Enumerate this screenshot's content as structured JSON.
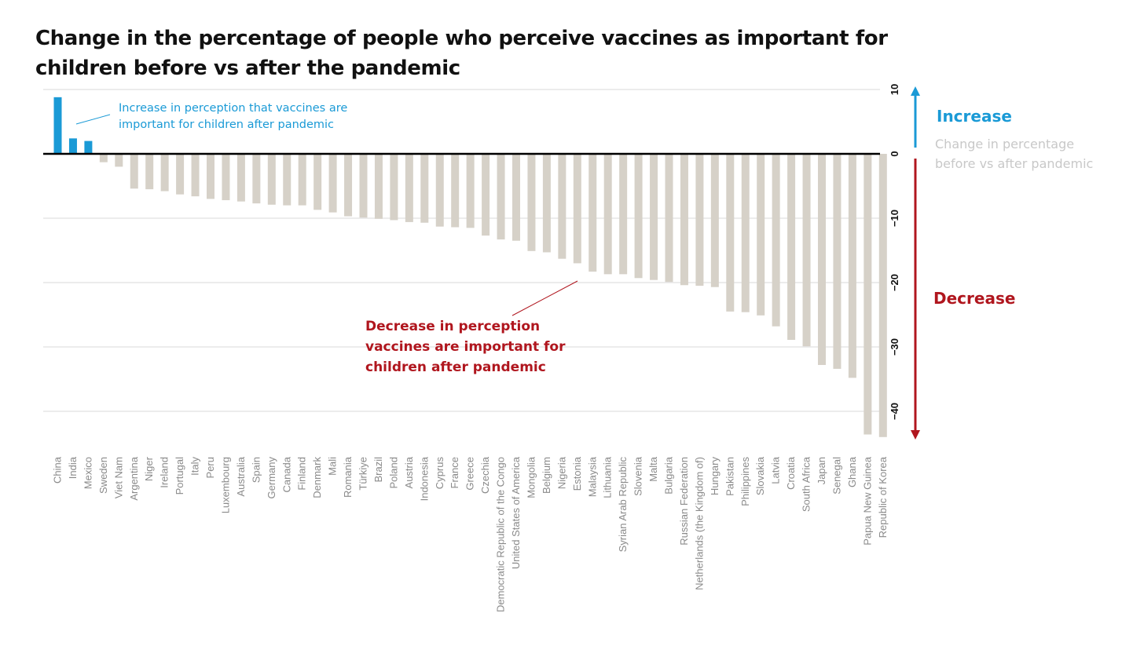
{
  "title": "Change in the percentage of people who perceive vaccines as important for children before vs after the pandemic",
  "colors": {
    "increase": "#1a9ad6",
    "decrease_bar": "#d6d1c8",
    "decrease_text": "#b0161e",
    "legend_grey": "#c8c8c8",
    "zero_line": "#000000",
    "grid": "#d8d8d8"
  },
  "annotations": {
    "increase_note": [
      "Increase in perception that vaccines are",
      "important for children after pandemic"
    ],
    "decrease_note": [
      "Decrease in perception",
      "vaccines are important for",
      "children after pandemic"
    ]
  },
  "legend": {
    "increase_label": "Increase",
    "decrease_label": "Decrease",
    "change_label": [
      "Change in percentage",
      "before vs after pandemic"
    ]
  },
  "chart_data": {
    "type": "bar",
    "title": "Change in the percentage of people who perceive vaccines as important for children before vs after the pandemic",
    "xlabel": "",
    "ylabel": "",
    "ylim": [
      -45,
      10
    ],
    "yticks": [
      10,
      0,
      -10,
      -20,
      -30,
      -40
    ],
    "grid": true,
    "categories": [
      "China",
      "India",
      "Mexico",
      "Sweden",
      "Viet Nam",
      "Argentina",
      "Niger",
      "Ireland",
      "Portugal",
      "Italy",
      "Peru",
      "Luxembourg",
      "Australia",
      "Spain",
      "Germany",
      "Canada",
      "Finland",
      "Denmark",
      "Mali",
      "Romania",
      "Türkiye",
      "Brazil",
      "Poland",
      "Austria",
      "Indonesia",
      "Cyprus",
      "France",
      "Greece",
      "Czechia",
      "Democratic Republic of the Congo",
      "United States of America",
      "Mongolia",
      "Belgium",
      "Nigeria",
      "Estonia",
      "Malaysia",
      "Lithuania",
      "Syrian Arab Republic",
      "Slovenia",
      "Malta",
      "Bulgaria",
      "Russian Federation",
      "Netherlands (the Kingdom of)",
      "Hungary",
      "Pakistan",
      "Philippines",
      "Slovakia",
      "Latvia",
      "Croatia",
      "South Africa",
      "Japan",
      "Senegal",
      "Ghana",
      "Papua New Guinea",
      "Republic of Korea"
    ],
    "values": [
      8.8,
      2.4,
      2.0,
      -1.3,
      -2.0,
      -5.4,
      -5.5,
      -5.8,
      -6.3,
      -6.6,
      -7.0,
      -7.2,
      -7.4,
      -7.7,
      -7.9,
      -8.0,
      -8.0,
      -8.7,
      -9.1,
      -9.7,
      -9.9,
      -10.1,
      -10.3,
      -10.6,
      -10.7,
      -11.3,
      -11.4,
      -11.5,
      -12.7,
      -13.3,
      -13.5,
      -15.1,
      -15.3,
      -16.3,
      -17.0,
      -18.3,
      -18.7,
      -18.7,
      -19.3,
      -19.6,
      -19.9,
      -20.4,
      -20.5,
      -20.7,
      -24.5,
      -24.6,
      -25.1,
      -26.8,
      -28.9,
      -29.9,
      -32.8,
      -33.4,
      -34.8,
      -43.6,
      -44.0
    ]
  }
}
